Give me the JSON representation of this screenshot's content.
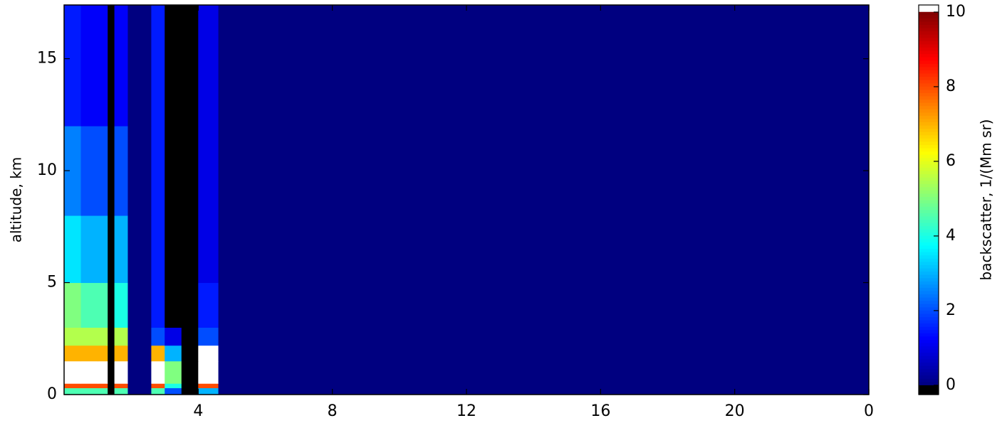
{
  "chart_data": {
    "type": "heatmap",
    "xlabel": null,
    "ylabel": "altitude, km",
    "colorbar_label": "backscatter, 1/(Mm sr)",
    "colormap": "jet",
    "under_color": "#000000",
    "over_color": "#ffffff",
    "color_norm": [
      0,
      10
    ],
    "colorbar_lim": [
      -0.25,
      10.19
    ],
    "colorbar_ticks": [
      0,
      2,
      4,
      6,
      8,
      10
    ],
    "xlim": [
      0,
      24
    ],
    "xticks": [
      4,
      8,
      12,
      16,
      20,
      {
        "value": 24,
        "label": "0"
      }
    ],
    "ylim": [
      0,
      17.4
    ],
    "yticks": [
      0,
      5,
      10,
      15
    ],
    "x_bins": [
      0,
      0.5,
      1,
      1.3,
      1.5,
      1.9,
      2.6,
      3,
      3.5,
      4,
      4.6,
      24
    ],
    "y_bins": [
      0,
      0.3,
      0.5,
      1.5,
      2.2,
      3,
      5,
      8,
      12,
      17.4
    ],
    "z": [
      [
        4.5,
        4.5,
        4.5,
        -0.3,
        4.5,
        0,
        4.5,
        2,
        -0.3,
        3,
        0
      ],
      [
        8,
        8,
        8,
        -0.3,
        8,
        0,
        8,
        4,
        -0.3,
        8,
        0
      ],
      [
        11,
        11,
        11,
        -0.3,
        11,
        0,
        11,
        5,
        -0.3,
        11,
        0
      ],
      [
        7,
        7,
        7,
        -0.3,
        7,
        0,
        7,
        3,
        -0.3,
        11,
        0
      ],
      [
        5.5,
        5.5,
        5.5,
        -0.3,
        5.5,
        0,
        2,
        1,
        -0.3,
        2,
        0
      ],
      [
        5,
        4.5,
        4.5,
        -0.3,
        4,
        0,
        1.5,
        -0.3,
        -0.3,
        1.5,
        0
      ],
      [
        3.5,
        3,
        3,
        -0.3,
        3,
        0,
        1.5,
        -0.3,
        -0.3,
        1,
        0
      ],
      [
        2.5,
        2,
        2,
        -0.3,
        2,
        0,
        1.5,
        -0.3,
        -0.3,
        1,
        0
      ],
      [
        1.5,
        1.2,
        1.2,
        -0.3,
        1.2,
        0,
        1.5,
        -0.3,
        -0.3,
        1,
        0
      ]
    ]
  }
}
